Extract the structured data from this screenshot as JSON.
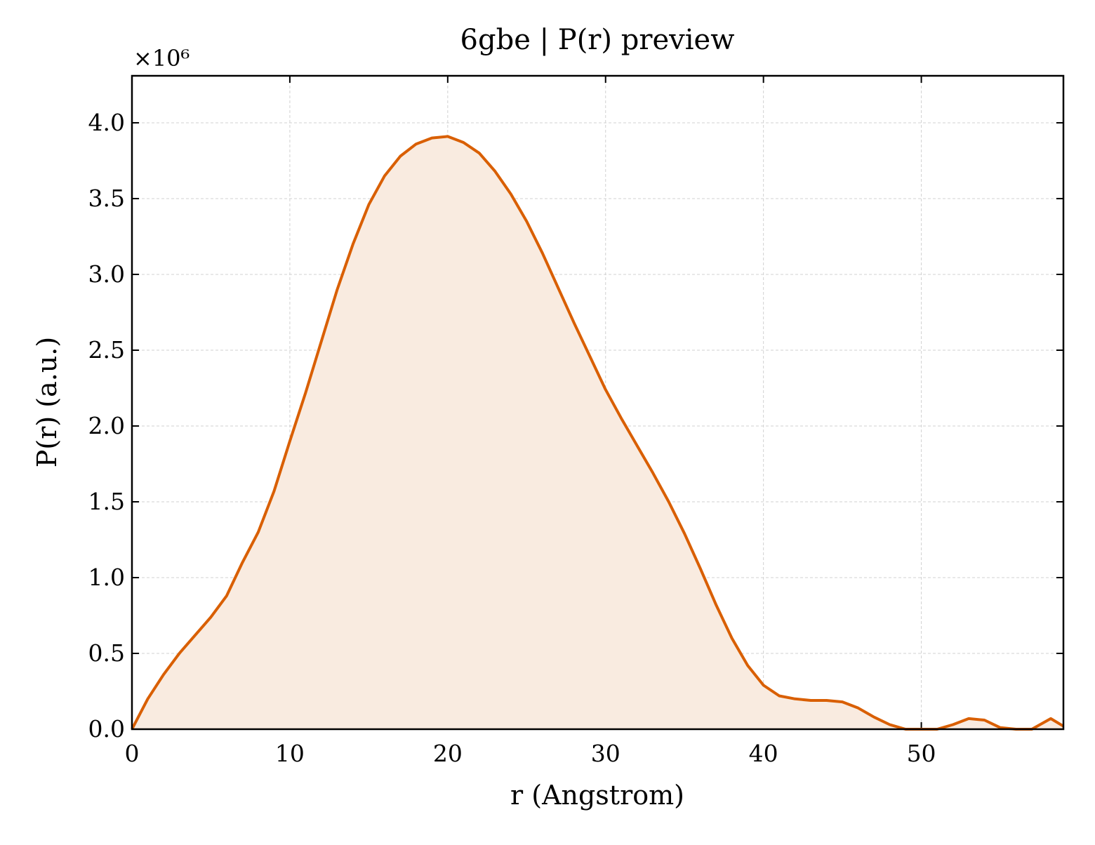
{
  "chart_data": {
    "type": "line",
    "title": "6gbe | P(r) preview",
    "xlabel": "r (Angstrom)",
    "ylabel": "P(r) (a.u.)",
    "y_multiplier": "×10⁶",
    "x": [
      0,
      1,
      2,
      3,
      4,
      5,
      6,
      7,
      8,
      9,
      10,
      11,
      12,
      13,
      14,
      15,
      16,
      17,
      18,
      19,
      20,
      21,
      22,
      23,
      24,
      25,
      26,
      27,
      28,
      29,
      30,
      31,
      32,
      33,
      34,
      35,
      36,
      37,
      38,
      39,
      40,
      41,
      42,
      43,
      44,
      45,
      46,
      47,
      48,
      49,
      50,
      51,
      52,
      53,
      54,
      55,
      56,
      57,
      58.2,
      59
    ],
    "series": [
      {
        "name": "P(r)",
        "color": "#d95f02",
        "fill_color": "#f9ebe0",
        "values": [
          0,
          0.2,
          0.36,
          0.5,
          0.62,
          0.74,
          0.88,
          1.1,
          1.3,
          1.57,
          1.9,
          2.22,
          2.56,
          2.9,
          3.2,
          3.46,
          3.65,
          3.78,
          3.86,
          3.9,
          3.91,
          3.87,
          3.8,
          3.68,
          3.53,
          3.35,
          3.14,
          2.91,
          2.68,
          2.46,
          2.24,
          2.05,
          1.87,
          1.69,
          1.5,
          1.29,
          1.06,
          0.82,
          0.6,
          0.42,
          0.29,
          0.22,
          0.2,
          0.19,
          0.19,
          0.18,
          0.14,
          0.08,
          0.03,
          0,
          0,
          0,
          0.03,
          0.07,
          0.06,
          0.01,
          0,
          0,
          0.07,
          0.02
        ]
      }
    ],
    "xlim": [
      0,
      59
    ],
    "ylim": [
      0,
      4.31
    ],
    "xticks": [
      0,
      10,
      20,
      30,
      40,
      50
    ],
    "yticks": [
      {
        "value": 0,
        "label": "0.0"
      },
      {
        "value": 0.5,
        "label": "0.5"
      },
      {
        "value": 1,
        "label": "1.0"
      },
      {
        "value": 1.5,
        "label": "1.5"
      },
      {
        "value": 2,
        "label": "2.0"
      },
      {
        "value": 2.5,
        "label": "2.5"
      },
      {
        "value": 3,
        "label": "3.0"
      },
      {
        "value": 3.5,
        "label": "3.5"
      },
      {
        "value": 4,
        "label": "4.0"
      }
    ],
    "grid": true
  }
}
